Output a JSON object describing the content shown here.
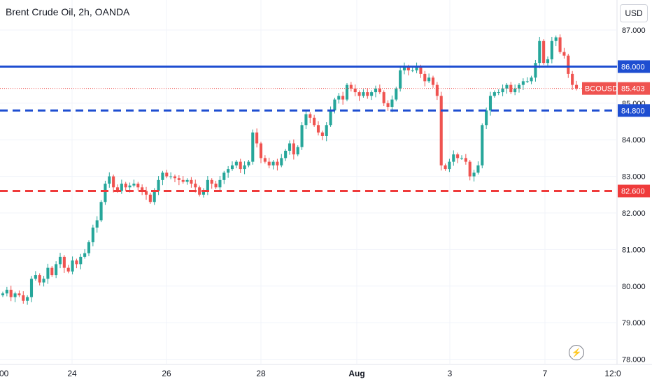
{
  "header": {
    "title": "Brent Crude Oil, 2h, OANDA",
    "currency": "USD"
  },
  "icons": {
    "lightning": "lightning-icon"
  },
  "chart_data": {
    "type": "candlestick",
    "title": "Brent Crude Oil, 2h, OANDA",
    "symbol": "BCOUSD",
    "last_price": 85.403,
    "ylim": [
      78.0,
      87.3
    ],
    "y_ticks": [
      "87.000",
      "86.000",
      "85.000",
      "84.000",
      "83.000",
      "82.000",
      "81.000",
      "80.000",
      "79.000",
      "78.000"
    ],
    "y_tick_values": [
      87,
      86,
      85,
      84,
      83,
      82,
      81,
      80,
      79,
      78
    ],
    "x_ticks": [
      ":00",
      "24",
      "26",
      "28",
      "Aug",
      "3",
      "7",
      "12:0"
    ],
    "grid": true,
    "colors": {
      "up": "#26a69a",
      "down": "#ef5350",
      "blue_level": "#1e4ed1",
      "red_level": "#ef3b3b",
      "last_price": "#ef5350"
    },
    "levels": [
      {
        "price": 86.0,
        "label": "86.000",
        "style": "solid",
        "color": "#1e4ed1"
      },
      {
        "price": 84.8,
        "label": "84.800",
        "style": "dashed",
        "color": "#1e4ed1"
      },
      {
        "price": 82.6,
        "label": "82.600",
        "style": "dashed",
        "color": "#ef3b3b"
      }
    ],
    "candles_close": [
      79.8,
      79.9,
      79.7,
      79.8,
      79.75,
      79.6,
      79.7,
      80.2,
      80.3,
      80.1,
      80.2,
      80.5,
      80.3,
      80.6,
      80.8,
      80.5,
      80.4,
      80.7,
      80.6,
      80.8,
      80.9,
      81.2,
      81.6,
      81.8,
      82.3,
      82.8,
      83.0,
      82.7,
      82.6,
      82.8,
      82.7,
      82.75,
      82.8,
      82.7,
      82.6,
      82.5,
      82.3,
      82.6,
      82.9,
      83.1,
      83.0,
      83.0,
      82.95,
      82.9,
      82.85,
      82.9,
      82.8,
      82.7,
      82.5,
      82.6,
      82.9,
      82.8,
      82.7,
      82.9,
      83.1,
      83.2,
      83.3,
      83.4,
      83.2,
      83.3,
      83.4,
      84.2,
      83.9,
      83.5,
      83.4,
      83.3,
      83.4,
      83.3,
      83.5,
      83.7,
      83.9,
      83.6,
      83.8,
      84.4,
      84.7,
      84.6,
      84.4,
      84.2,
      84.1,
      84.4,
      84.8,
      85.1,
      85.2,
      85.1,
      85.5,
      85.4,
      85.3,
      85.2,
      85.3,
      85.2,
      85.3,
      85.4,
      85.3,
      85.0,
      84.9,
      85.1,
      85.4,
      85.9,
      86.0,
      85.9,
      85.9,
      86.0,
      85.8,
      85.6,
      85.7,
      85.5,
      85.2,
      83.3,
      83.2,
      83.4,
      83.6,
      83.5,
      83.5,
      83.4,
      83.0,
      83.1,
      83.3,
      84.4,
      84.8,
      85.2,
      85.3,
      85.3,
      85.4,
      85.5,
      85.3,
      85.4,
      85.5,
      85.6,
      85.6,
      85.7,
      86.1,
      86.7,
      86.1,
      86.2,
      86.7,
      86.8,
      86.4,
      86.3,
      85.8,
      85.5,
      85.4
    ]
  }
}
